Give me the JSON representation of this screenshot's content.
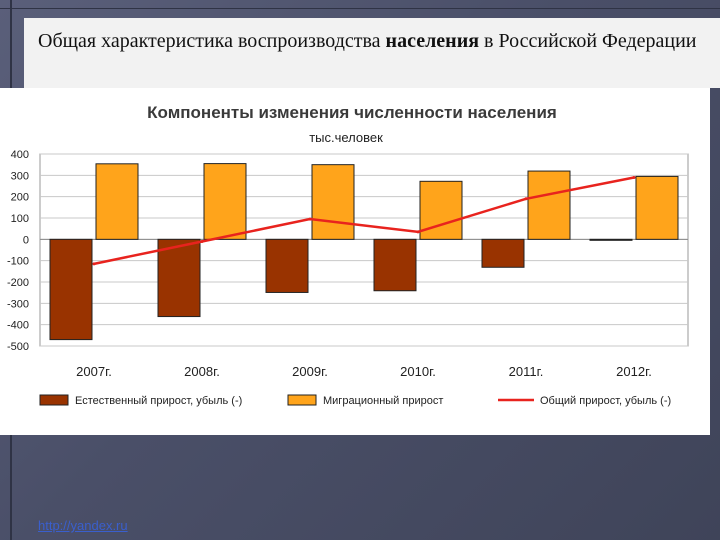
{
  "slide": {
    "title_part1": "Общая характеристика воспроизводства ",
    "title_bold": "населения",
    "title_part2": " в Российской Федерации",
    "footer_link": "http://yandex.ru"
  },
  "chart_data": {
    "type": "bar",
    "title": "Компоненты изменения численности населения",
    "subtitle": "тыс.человек",
    "categories": [
      "2007г.",
      "2008г.",
      "2009г.",
      "2010г.",
      "2011г.",
      "2012г."
    ],
    "ylim": [
      -500,
      400
    ],
    "yticks": [
      400,
      300,
      200,
      100,
      0,
      -100,
      -200,
      -300,
      -400,
      -500
    ],
    "grid": true,
    "legend_position": "bottom",
    "series": [
      {
        "name": "Естественный прирост, убыль (-)",
        "kind": "bar",
        "color": "#993300",
        "values": [
          -470,
          -362,
          -249,
          -241,
          -131,
          -2
        ]
      },
      {
        "name": "Миграционный прирост",
        "kind": "bar",
        "color": "#ffa41b",
        "values": [
          354,
          355,
          350,
          272,
          320,
          295
        ]
      },
      {
        "name": "Общий прирост, убыль (-)",
        "kind": "line",
        "color": "#e8231e",
        "values": [
          -115,
          -10,
          95,
          35,
          190,
          290
        ]
      }
    ]
  }
}
